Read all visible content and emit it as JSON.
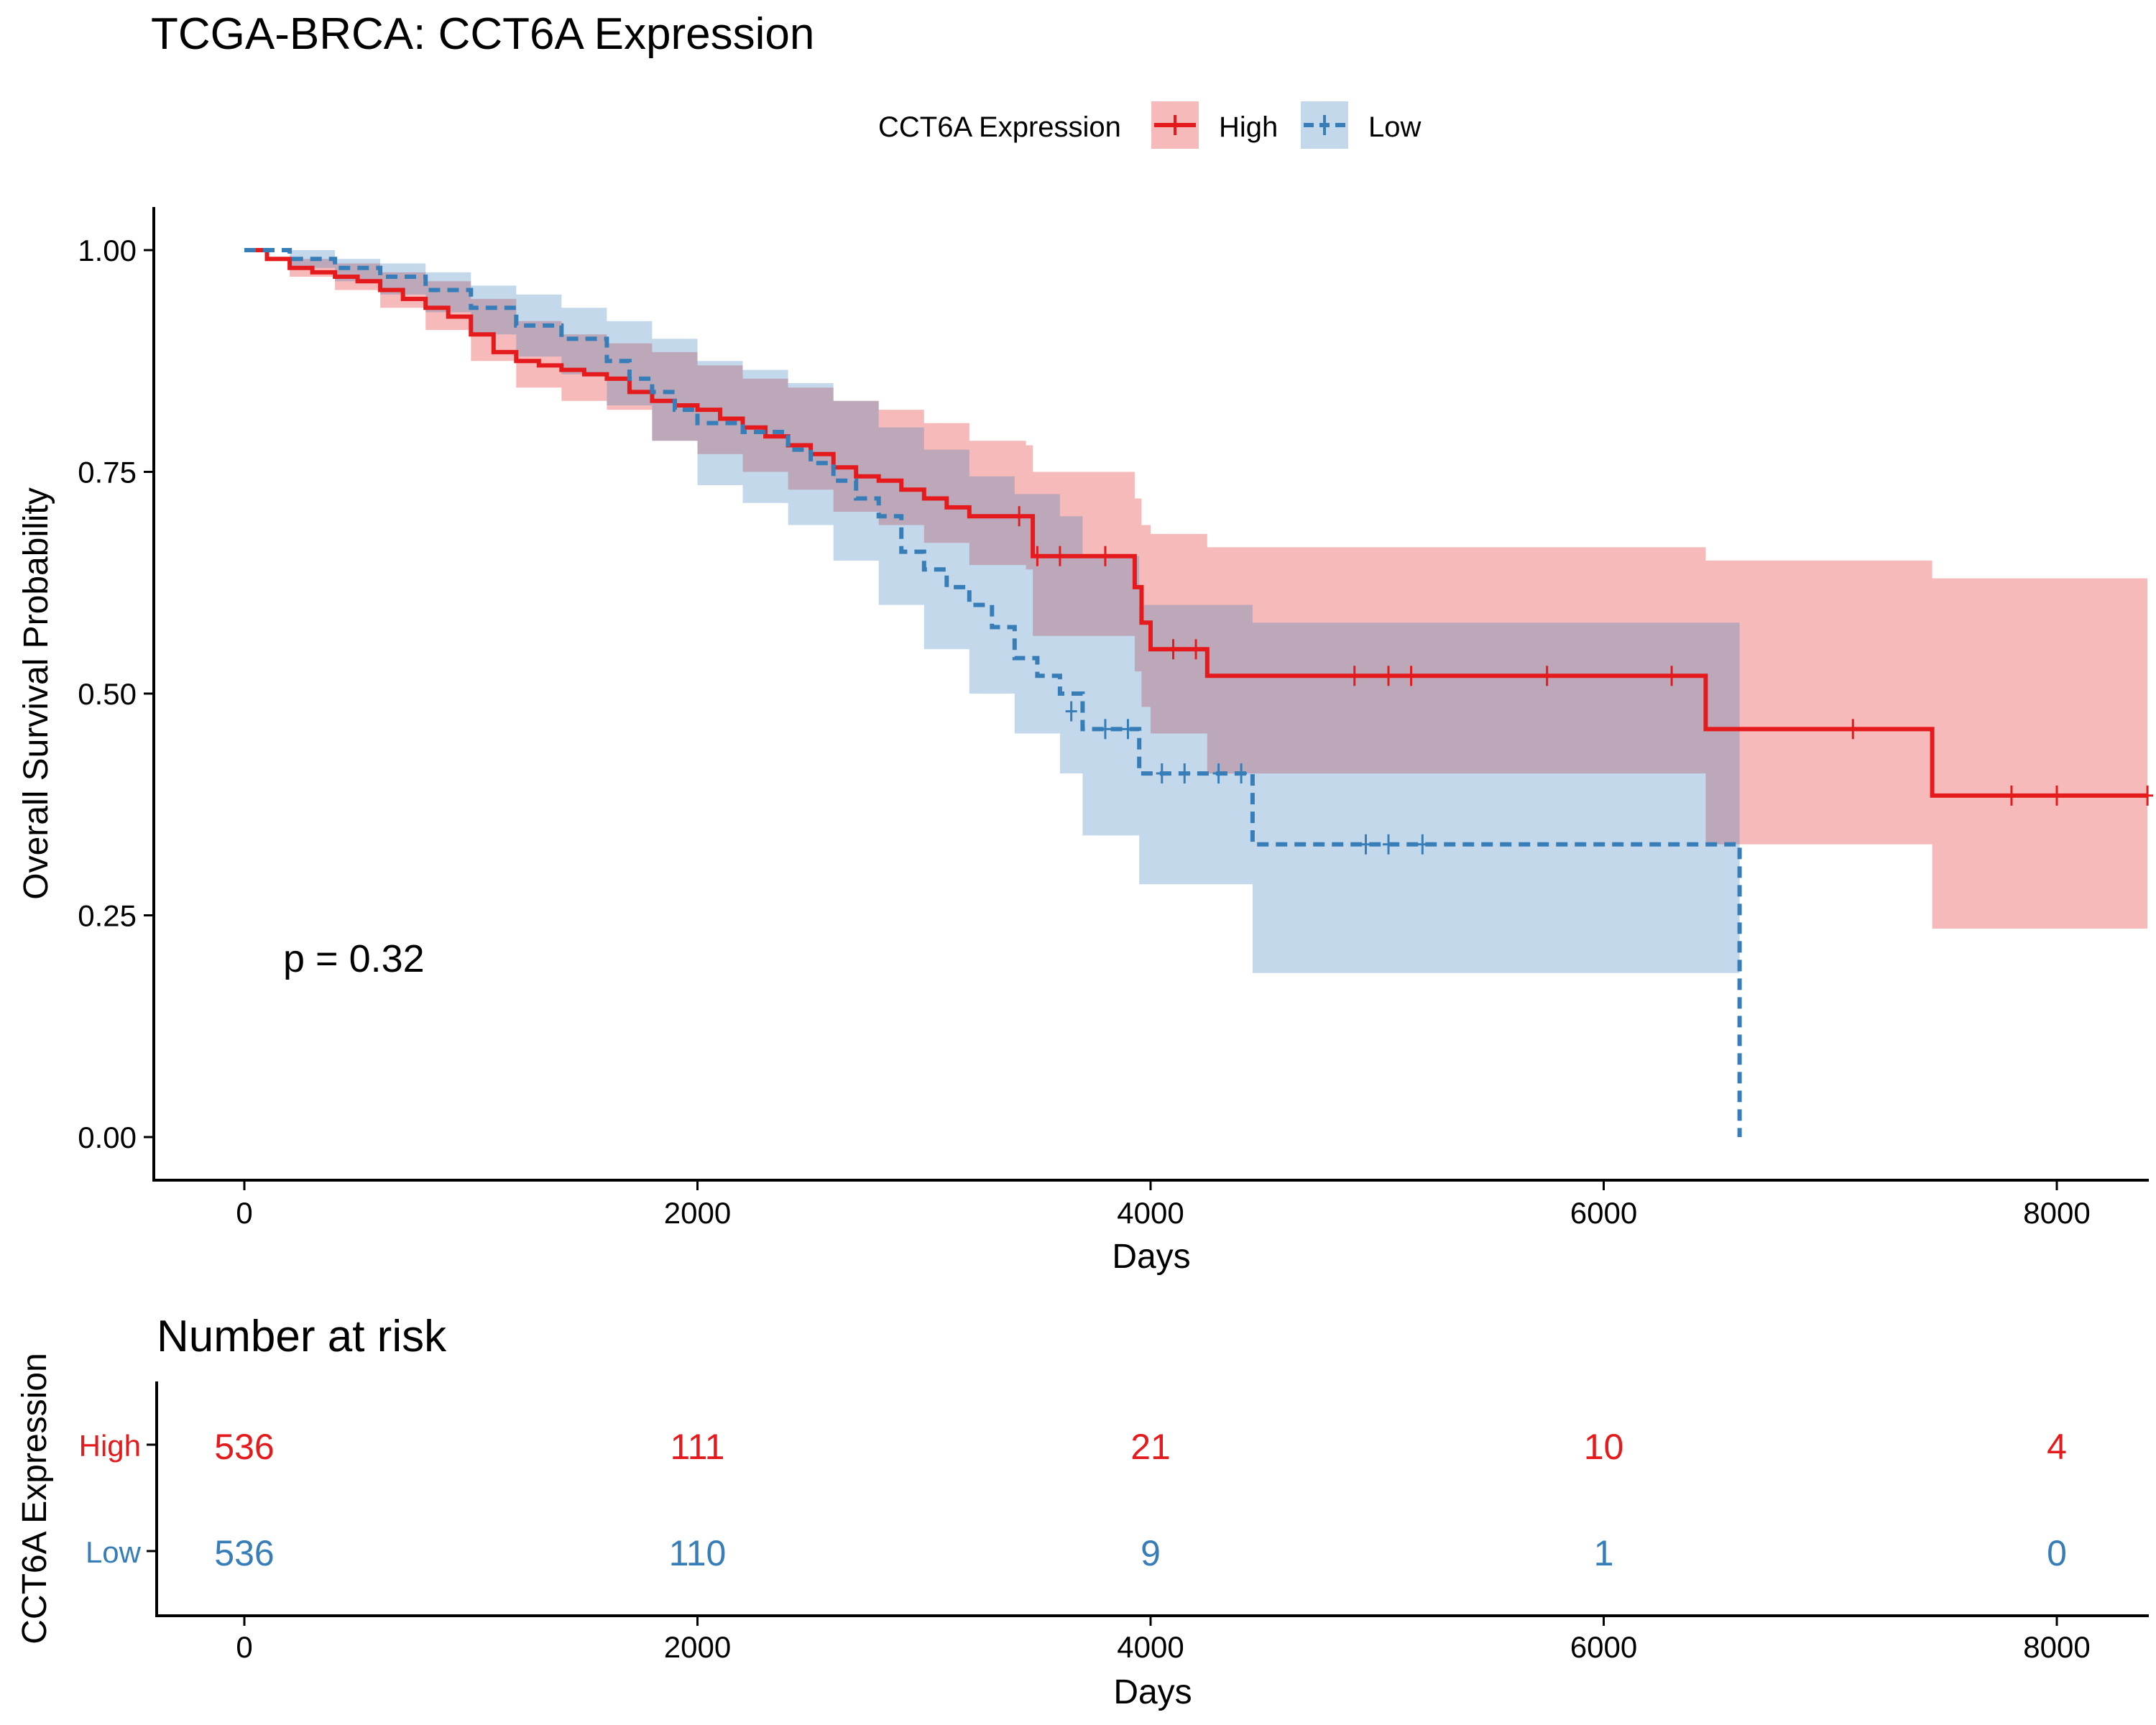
{
  "chart_data": {
    "type": "line",
    "title": "TCGA-BRCA: CCT6A Expression",
    "legend": {
      "title": "CCT6A Expression",
      "position": "top",
      "entries": [
        "High",
        "Low"
      ]
    },
    "xlabel": "Days",
    "ylabel": "Overall Survival Probability",
    "xlim": [
      -400,
      8400
    ],
    "ylim": [
      -0.05,
      1.05
    ],
    "xticks": [
      0,
      2000,
      4000,
      6000,
      8000
    ],
    "yticks": [
      0,
      0.25,
      0.5,
      0.75,
      1.0
    ],
    "ytick_labels": [
      "0.00",
      "0.25",
      "0.50",
      "0.75",
      "1.00"
    ],
    "xtick_labels": [
      "0",
      "2000",
      "4000",
      "6000",
      "8000"
    ],
    "grid": false,
    "annotation": "p = 0.32",
    "colors": {
      "High": "#e41a1c",
      "Low": "#377eb8"
    },
    "series": [
      {
        "name": "High",
        "line_style": "solid",
        "steps": [
          [
            0,
            1.0
          ],
          [
            100,
            0.99
          ],
          [
            200,
            0.98
          ],
          [
            300,
            0.975
          ],
          [
            400,
            0.97
          ],
          [
            500,
            0.965
          ],
          [
            600,
            0.955
          ],
          [
            700,
            0.945
          ],
          [
            800,
            0.935
          ],
          [
            900,
            0.925
          ],
          [
            1000,
            0.905
          ],
          [
            1100,
            0.885
          ],
          [
            1200,
            0.875
          ],
          [
            1300,
            0.87
          ],
          [
            1400,
            0.865
          ],
          [
            1500,
            0.86
          ],
          [
            1600,
            0.855
          ],
          [
            1700,
            0.84
          ],
          [
            1800,
            0.83
          ],
          [
            1900,
            0.825
          ],
          [
            2000,
            0.82
          ],
          [
            2100,
            0.81
          ],
          [
            2200,
            0.8
          ],
          [
            2300,
            0.79
          ],
          [
            2400,
            0.78
          ],
          [
            2500,
            0.77
          ],
          [
            2600,
            0.755
          ],
          [
            2700,
            0.745
          ],
          [
            2800,
            0.74
          ],
          [
            2900,
            0.73
          ],
          [
            3000,
            0.72
          ],
          [
            3100,
            0.71
          ],
          [
            3200,
            0.7
          ],
          [
            3450,
            0.7
          ],
          [
            3480,
            0.655
          ],
          [
            3930,
            0.62
          ],
          [
            3960,
            0.58
          ],
          [
            4000,
            0.55
          ],
          [
            4250,
            0.52
          ],
          [
            6450,
            0.46
          ],
          [
            7450,
            0.385
          ],
          [
            8400,
            0.385
          ]
        ],
        "upper": [
          [
            0,
            1.0
          ],
          [
            200,
            0.99
          ],
          [
            400,
            0.985
          ],
          [
            600,
            0.975
          ],
          [
            800,
            0.965
          ],
          [
            1000,
            0.945
          ],
          [
            1200,
            0.92
          ],
          [
            1400,
            0.905
          ],
          [
            1600,
            0.895
          ],
          [
            1800,
            0.885
          ],
          [
            2000,
            0.87
          ],
          [
            2200,
            0.855
          ],
          [
            2400,
            0.845
          ],
          [
            2600,
            0.83
          ],
          [
            2800,
            0.82
          ],
          [
            3000,
            0.805
          ],
          [
            3200,
            0.785
          ],
          [
            3450,
            0.78
          ],
          [
            3480,
            0.75
          ],
          [
            3930,
            0.72
          ],
          [
            3960,
            0.69
          ],
          [
            4000,
            0.68
          ],
          [
            4250,
            0.665
          ],
          [
            6450,
            0.65
          ],
          [
            7450,
            0.63
          ],
          [
            8400,
            0.63
          ]
        ],
        "lower": [
          [
            0,
            1.0
          ],
          [
            200,
            0.97
          ],
          [
            400,
            0.955
          ],
          [
            600,
            0.935
          ],
          [
            800,
            0.91
          ],
          [
            1000,
            0.875
          ],
          [
            1200,
            0.845
          ],
          [
            1400,
            0.83
          ],
          [
            1600,
            0.82
          ],
          [
            1800,
            0.785
          ],
          [
            2000,
            0.77
          ],
          [
            2200,
            0.75
          ],
          [
            2400,
            0.73
          ],
          [
            2600,
            0.705
          ],
          [
            2800,
            0.69
          ],
          [
            3000,
            0.67
          ],
          [
            3200,
            0.645
          ],
          [
            3450,
            0.64
          ],
          [
            3480,
            0.565
          ],
          [
            3930,
            0.525
          ],
          [
            3960,
            0.485
          ],
          [
            4000,
            0.455
          ],
          [
            4250,
            0.41
          ],
          [
            6450,
            0.33
          ],
          [
            7450,
            0.235
          ],
          [
            8400,
            0.235
          ]
        ],
        "censors": [
          [
            3420,
            0.7
          ],
          [
            3500,
            0.655
          ],
          [
            3600,
            0.655
          ],
          [
            3800,
            0.655
          ],
          [
            4100,
            0.55
          ],
          [
            4200,
            0.55
          ],
          [
            4900,
            0.52
          ],
          [
            5050,
            0.52
          ],
          [
            5150,
            0.52
          ],
          [
            5750,
            0.52
          ],
          [
            6300,
            0.52
          ],
          [
            7100,
            0.46
          ],
          [
            7800,
            0.385
          ],
          [
            8000,
            0.385
          ],
          [
            8400,
            0.385
          ]
        ]
      },
      {
        "name": "Low",
        "line_style": "dashed",
        "steps": [
          [
            0,
            1.0
          ],
          [
            200,
            0.99
          ],
          [
            400,
            0.98
          ],
          [
            600,
            0.97
          ],
          [
            800,
            0.955
          ],
          [
            1000,
            0.935
          ],
          [
            1200,
            0.915
          ],
          [
            1400,
            0.9
          ],
          [
            1600,
            0.875
          ],
          [
            1700,
            0.855
          ],
          [
            1800,
            0.84
          ],
          [
            1900,
            0.82
          ],
          [
            2000,
            0.805
          ],
          [
            2200,
            0.795
          ],
          [
            2400,
            0.775
          ],
          [
            2500,
            0.76
          ],
          [
            2600,
            0.74
          ],
          [
            2700,
            0.72
          ],
          [
            2800,
            0.7
          ],
          [
            2900,
            0.66
          ],
          [
            3000,
            0.64
          ],
          [
            3100,
            0.62
          ],
          [
            3200,
            0.6
          ],
          [
            3300,
            0.575
          ],
          [
            3400,
            0.54
          ],
          [
            3500,
            0.52
          ],
          [
            3600,
            0.5
          ],
          [
            3700,
            0.46
          ],
          [
            3950,
            0.41
          ],
          [
            4450,
            0.33
          ],
          [
            6600,
            0.0
          ]
        ],
        "upper": [
          [
            0,
            1.0
          ],
          [
            200,
            1.0
          ],
          [
            400,
            0.99
          ],
          [
            600,
            0.985
          ],
          [
            800,
            0.975
          ],
          [
            1000,
            0.96
          ],
          [
            1200,
            0.95
          ],
          [
            1400,
            0.935
          ],
          [
            1600,
            0.92
          ],
          [
            1800,
            0.9
          ],
          [
            2000,
            0.875
          ],
          [
            2200,
            0.865
          ],
          [
            2400,
            0.85
          ],
          [
            2600,
            0.83
          ],
          [
            2800,
            0.8
          ],
          [
            3000,
            0.775
          ],
          [
            3200,
            0.745
          ],
          [
            3400,
            0.725
          ],
          [
            3600,
            0.7
          ],
          [
            3700,
            0.655
          ],
          [
            3950,
            0.6
          ],
          [
            4450,
            0.58
          ],
          [
            6600,
            0.58
          ]
        ],
        "lower": [
          [
            0,
            1.0
          ],
          [
            200,
            0.98
          ],
          [
            400,
            0.965
          ],
          [
            600,
            0.95
          ],
          [
            800,
            0.93
          ],
          [
            1000,
            0.905
          ],
          [
            1200,
            0.88
          ],
          [
            1400,
            0.86
          ],
          [
            1600,
            0.825
          ],
          [
            1800,
            0.785
          ],
          [
            2000,
            0.735
          ],
          [
            2200,
            0.715
          ],
          [
            2400,
            0.69
          ],
          [
            2600,
            0.65
          ],
          [
            2800,
            0.6
          ],
          [
            3000,
            0.55
          ],
          [
            3200,
            0.5
          ],
          [
            3400,
            0.455
          ],
          [
            3600,
            0.41
          ],
          [
            3700,
            0.34
          ],
          [
            3950,
            0.285
          ],
          [
            4450,
            0.185
          ],
          [
            6600,
            0.185
          ]
        ],
        "censors": [
          [
            3650,
            0.48
          ],
          [
            3800,
            0.46
          ],
          [
            3900,
            0.46
          ],
          [
            4050,
            0.41
          ],
          [
            4150,
            0.41
          ],
          [
            4300,
            0.41
          ],
          [
            4400,
            0.41
          ],
          [
            4950,
            0.33
          ],
          [
            5050,
            0.33
          ],
          [
            5200,
            0.33
          ]
        ]
      }
    ],
    "risk_table": {
      "title": "Number at risk",
      "ylabel": "CCT6A Expression",
      "xlabel": "Days",
      "times": [
        0,
        2000,
        4000,
        6000,
        8000
      ],
      "time_labels": [
        "0",
        "2000",
        "4000",
        "6000",
        "8000"
      ],
      "rows": [
        {
          "group": "High",
          "counts": [
            "536",
            "111",
            "21",
            "10",
            "4"
          ]
        },
        {
          "group": "Low",
          "counts": [
            "536",
            "110",
            "9",
            "1",
            "0"
          ]
        }
      ]
    }
  }
}
